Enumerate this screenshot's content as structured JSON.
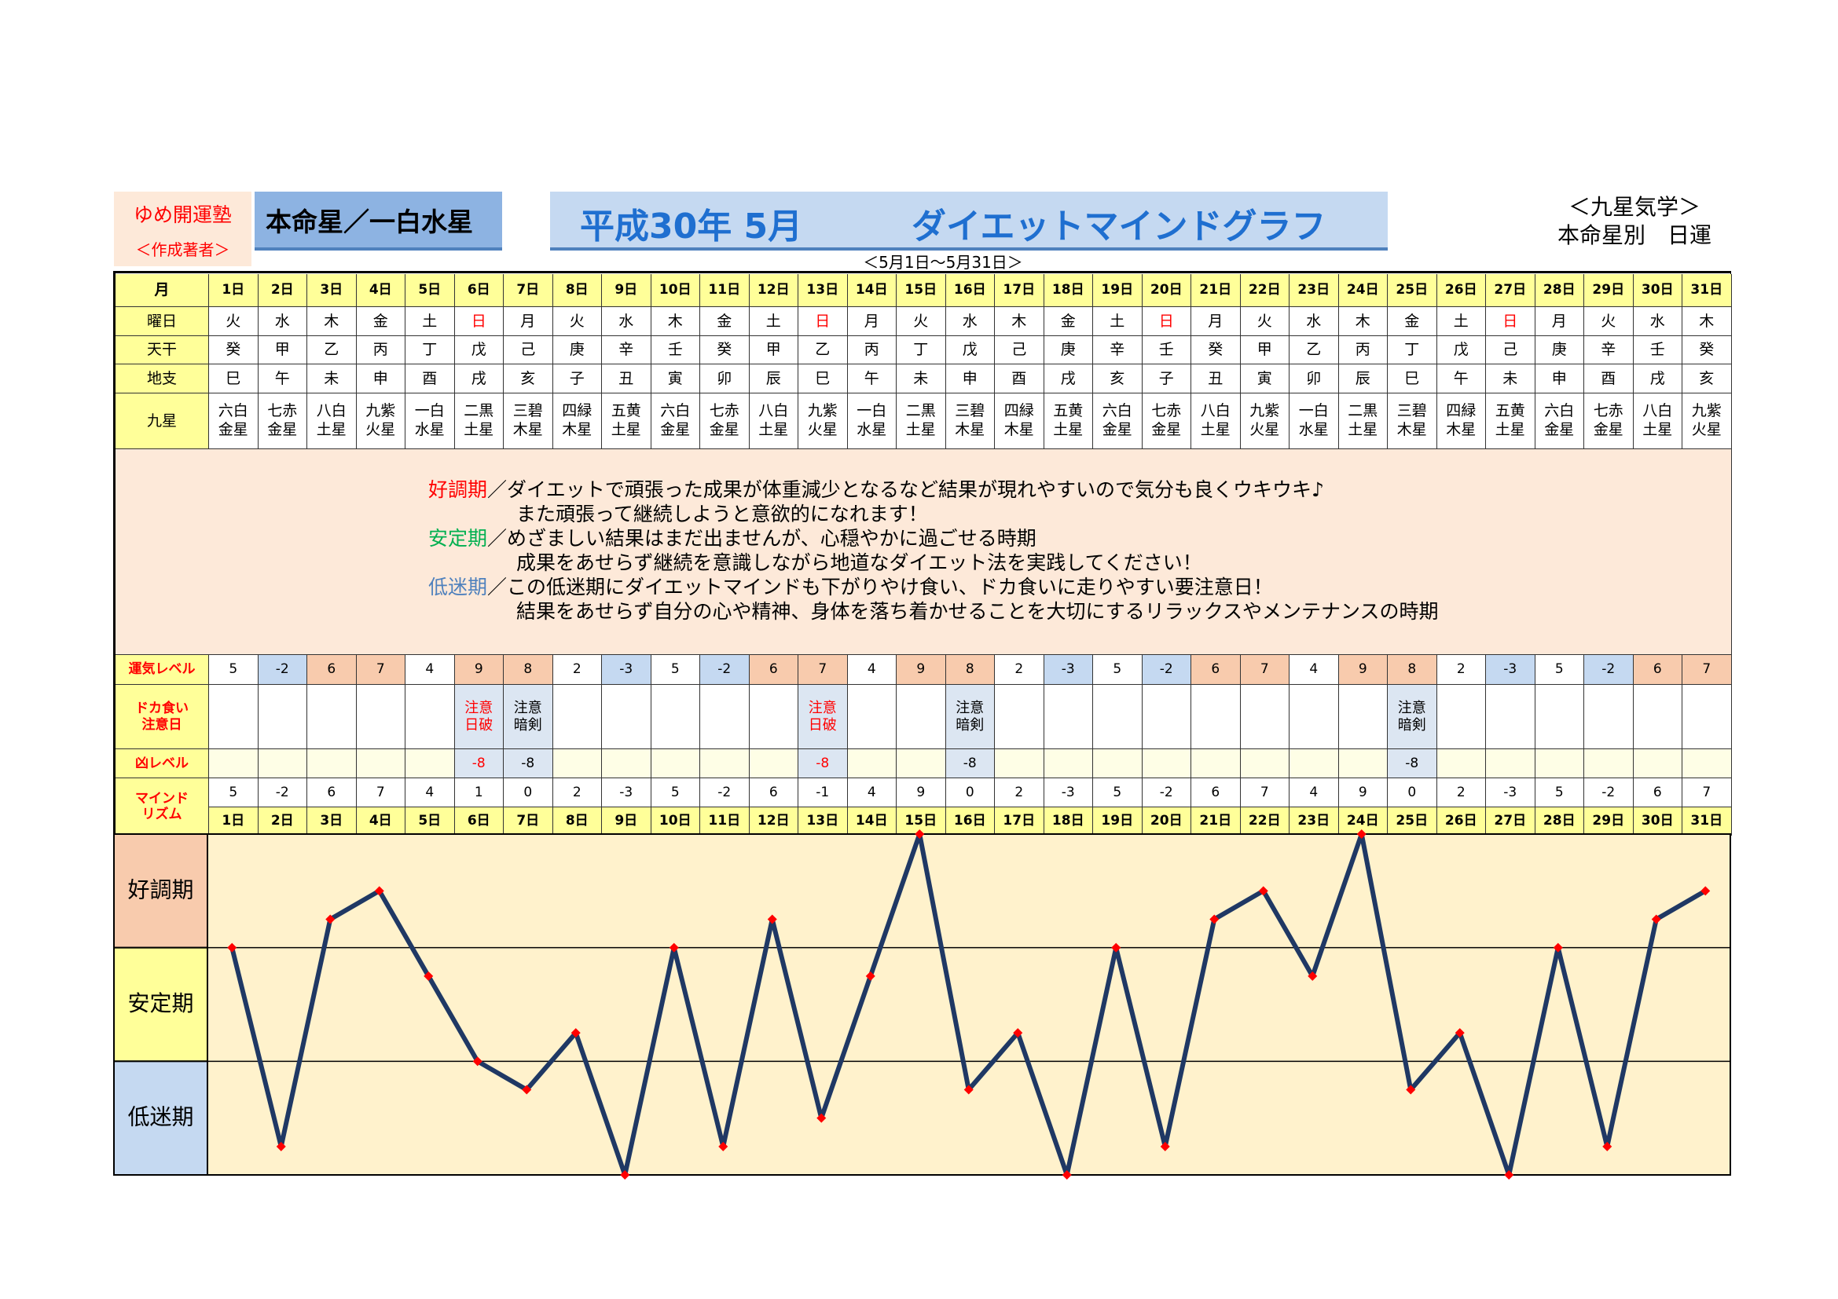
{
  "header": {
    "school": "ゆめ開運塾",
    "author": "＜作成著者＞",
    "star": "本命星／一白水星",
    "title_date": "平成30年 5月",
    "title": "ダイエットマインドグラフ",
    "range": "＜5月1日～5月31日＞",
    "side_title": "＜九星気学＞",
    "side_sub": "本命星別　日運"
  },
  "table": {
    "row_labels": {
      "month": "月",
      "weekday": "曜日",
      "tenkan": "天干",
      "chishi": "地支",
      "kyusei": "九星",
      "fortune": "運気レベル",
      "caution": [
        "ドカ食い",
        "注意日"
      ],
      "bad": "凶レベル",
      "mind": [
        "マインド",
        "リズム"
      ]
    },
    "label_alert_color": "#ff0000",
    "days": [
      "1日",
      "2日",
      "3日",
      "4日",
      "5日",
      "6日",
      "7日",
      "8日",
      "9日",
      "10日",
      "11日",
      "12日",
      "13日",
      "14日",
      "15日",
      "16日",
      "17日",
      "18日",
      "19日",
      "20日",
      "21日",
      "22日",
      "23日",
      "24日",
      "25日",
      "26日",
      "27日",
      "28日",
      "29日",
      "30日",
      "31日"
    ],
    "weekday": [
      "火",
      "水",
      "木",
      "金",
      "土",
      "日",
      "月",
      "火",
      "水",
      "木",
      "金",
      "土",
      "日",
      "月",
      "火",
      "水",
      "木",
      "金",
      "土",
      "日",
      "月",
      "火",
      "水",
      "木",
      "金",
      "土",
      "日",
      "月",
      "火",
      "水",
      "木"
    ],
    "weekday_colors": [
      null,
      null,
      null,
      null,
      null,
      "#ff0000",
      null,
      null,
      null,
      null,
      null,
      null,
      "#ff0000",
      null,
      null,
      null,
      null,
      null,
      null,
      "#ff0000",
      null,
      null,
      null,
      null,
      null,
      null,
      "#ff0000",
      null,
      null,
      null,
      null
    ],
    "tenkan": [
      "癸",
      "甲",
      "乙",
      "丙",
      "丁",
      "戊",
      "己",
      "庚",
      "辛",
      "壬",
      "癸",
      "甲",
      "乙",
      "丙",
      "丁",
      "戊",
      "己",
      "庚",
      "辛",
      "壬",
      "癸",
      "甲",
      "乙",
      "丙",
      "丁",
      "戊",
      "己",
      "庚",
      "辛",
      "壬",
      "癸"
    ],
    "chishi": [
      "巳",
      "午",
      "未",
      "申",
      "酉",
      "戌",
      "亥",
      "子",
      "丑",
      "寅",
      "卯",
      "辰",
      "巳",
      "午",
      "未",
      "申",
      "酉",
      "戌",
      "亥",
      "子",
      "丑",
      "寅",
      "卯",
      "辰",
      "巳",
      "午",
      "未",
      "申",
      "酉",
      "戌",
      "亥"
    ],
    "kyusei": [
      "六白金星",
      "七赤金星",
      "八白土星",
      "九紫火星",
      "一白水星",
      "二黒土星",
      "三碧木星",
      "四緑木星",
      "五黄土星",
      "六白金星",
      "七赤金星",
      "八白土星",
      "九紫火星",
      "一白水星",
      "二黒土星",
      "三碧木星",
      "四緑木星",
      "五黄土星",
      "六白金星",
      "七赤金星",
      "八白土星",
      "九紫火星",
      "一白水星",
      "二黒土星",
      "三碧木星",
      "四緑木星",
      "五黄土星",
      "六白金星",
      "七赤金星",
      "八白土星",
      "九紫火星"
    ],
    "fortune": [
      5,
      -2,
      6,
      7,
      4,
      9,
      8,
      2,
      -3,
      5,
      -2,
      6,
      7,
      4,
      9,
      8,
      2,
      -3,
      5,
      -2,
      6,
      7,
      4,
      9,
      8,
      2,
      -3,
      5,
      -2,
      6,
      7
    ],
    "caution": [
      null,
      null,
      null,
      null,
      null,
      {
        "lines": [
          "注意",
          "日破"
        ],
        "color": "#ff0000"
      },
      {
        "lines": [
          "注意",
          "暗剣"
        ],
        "color": "#000000"
      },
      null,
      null,
      null,
      null,
      null,
      {
        "lines": [
          "注意",
          "日破"
        ],
        "color": "#ff0000"
      },
      null,
      null,
      {
        "lines": [
          "注意",
          "暗剣"
        ],
        "color": "#000000"
      },
      null,
      null,
      null,
      null,
      null,
      null,
      null,
      null,
      {
        "lines": [
          "注意",
          "暗剣"
        ],
        "color": "#000000"
      },
      null,
      null,
      null,
      null,
      null,
      null
    ],
    "bad": [
      null,
      null,
      null,
      null,
      null,
      -8,
      -8,
      null,
      null,
      null,
      null,
      null,
      -8,
      null,
      null,
      -8,
      null,
      null,
      null,
      null,
      null,
      null,
      null,
      null,
      -8,
      null,
      null,
      null,
      null,
      null,
      null
    ]
  },
  "notes": [
    {
      "label": "好調期",
      "color": "#ff0000",
      "lines": [
        "／ダイエットで頑張った成果が体重減少となるなど結果が現れやすいので気分も良くウキウキ♪",
        "また頑張って継続しようと意欲的になれます！"
      ]
    },
    {
      "label": "安定期",
      "color": "#00b050",
      "lines": [
        "／めざましい結果はまだ出ませんが、心穏やかに過ごせる時期",
        "成果をあせらず継続を意識しながら地道なダイエット法を実践してください！"
      ]
    },
    {
      "label": "低迷期",
      "color": "#4f81bd",
      "lines": [
        "／この低迷期にダイエットマインドも下がりやけ食い、ドカ食いに走りやすい要注意日！",
        "結果をあせらず自分の心や精神、身体を落ち着かせることを大切にするリラックスやメンテナンスの時期"
      ]
    }
  ],
  "chart_data": {
    "type": "line",
    "categories": [
      "1日",
      "2日",
      "3日",
      "4日",
      "5日",
      "6日",
      "7日",
      "8日",
      "9日",
      "10日",
      "11日",
      "12日",
      "13日",
      "14日",
      "15日",
      "16日",
      "17日",
      "18日",
      "19日",
      "20日",
      "21日",
      "22日",
      "23日",
      "24日",
      "25日",
      "26日",
      "27日",
      "28日",
      "29日",
      "30日",
      "31日"
    ],
    "values": [
      5,
      -2,
      6,
      7,
      4,
      1,
      0,
      2,
      -3,
      5,
      -2,
      6,
      -1,
      4,
      9,
      0,
      2,
      -3,
      5,
      -2,
      6,
      7,
      4,
      9,
      0,
      2,
      -3,
      5,
      -2,
      6,
      7
    ],
    "ylim": [
      -3,
      9
    ],
    "color": "#1f3864",
    "marker_color": "#ff0000",
    "plot_color": "#fff2cc",
    "bands": [
      {
        "label": "好調期",
        "from": 5,
        "to": 9,
        "color": "#f8cbad"
      },
      {
        "label": "安定期",
        "from": 1,
        "to": 5,
        "color": "#ffff99"
      },
      {
        "label": "低迷期",
        "from": -3,
        "to": 1,
        "color": "#c5d9f1"
      }
    ]
  }
}
